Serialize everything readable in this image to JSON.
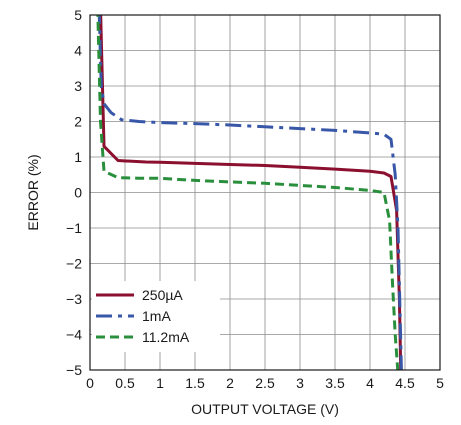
{
  "chart_data": {
    "type": "line",
    "title": "",
    "xlabel": "OUTPUT VOLTAGE (V)",
    "ylabel": "ERROR (%)",
    "xlim": [
      0,
      5
    ],
    "ylim": [
      -5,
      5
    ],
    "xticks": [
      "0",
      "0.5",
      "1",
      "1.5",
      "2",
      "2.5",
      "3",
      "3.5",
      "4",
      "4.5",
      "5"
    ],
    "yticks": [
      "5",
      "4",
      "3",
      "2",
      "1",
      "0",
      "−1",
      "−2",
      "−3",
      "−4",
      "−5"
    ],
    "grid": true,
    "legend_position": "bottom-left",
    "series": [
      {
        "name": "250µA",
        "color": "#8b0f2f",
        "dash": "solid",
        "x": [
          0.15,
          0.2,
          0.4,
          0.6,
          0.8,
          1.0,
          1.5,
          2.0,
          2.5,
          3.0,
          3.5,
          4.0,
          4.2,
          4.3,
          4.38,
          4.42,
          4.44
        ],
        "y": [
          5.2,
          1.3,
          0.9,
          0.88,
          0.86,
          0.85,
          0.82,
          0.79,
          0.76,
          0.71,
          0.66,
          0.6,
          0.55,
          0.45,
          -0.5,
          -3.0,
          -5.1
        ]
      },
      {
        "name": "1mA",
        "color": "#3857a8",
        "dash": "longdash",
        "x": [
          0.13,
          0.16,
          0.2,
          0.3,
          0.45,
          0.7,
          1.0,
          1.5,
          2.0,
          2.5,
          3.0,
          3.5,
          4.0,
          4.2,
          4.3,
          4.36,
          4.4,
          4.45
        ],
        "y": [
          5.2,
          3.0,
          2.5,
          2.25,
          2.05,
          2.0,
          1.97,
          1.94,
          1.9,
          1.85,
          1.8,
          1.75,
          1.68,
          1.64,
          1.5,
          0.5,
          -1.0,
          -5.1
        ]
      },
      {
        "name": "11.2mA",
        "color": "#2a8f3c",
        "dash": "dash",
        "x": [
          0.11,
          0.15,
          0.2,
          0.4,
          0.7,
          1.0,
          1.5,
          2.0,
          2.5,
          3.0,
          3.5,
          4.0,
          4.2,
          4.28,
          4.32,
          4.36,
          4.4
        ],
        "y": [
          5.2,
          2.0,
          0.6,
          0.42,
          0.4,
          0.4,
          0.34,
          0.3,
          0.26,
          0.2,
          0.14,
          0.06,
          0.0,
          -0.8,
          -2.5,
          -4.0,
          -5.1
        ]
      }
    ]
  }
}
